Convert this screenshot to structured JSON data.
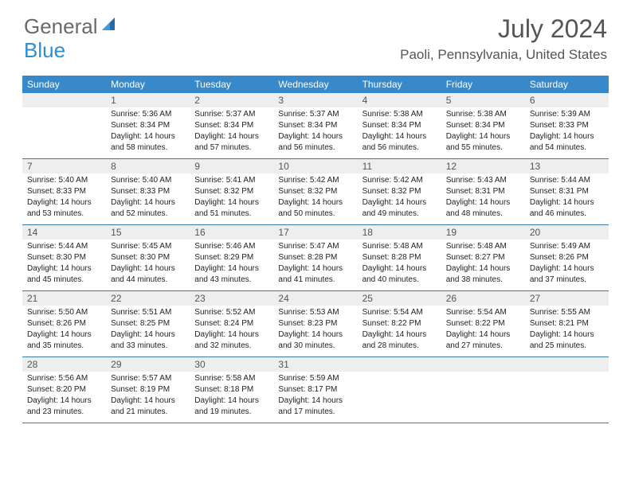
{
  "logo": {
    "text1": "General",
    "text2": "Blue"
  },
  "title": "July 2024",
  "location": "Paoli, Pennsylvania, United States",
  "colors": {
    "header_bg": "#3789c9",
    "header_text": "#ffffff",
    "daynum_bg": "#eeeeee",
    "daynum_text": "#555555",
    "body_text": "#222222",
    "row_border": "#3a78a8",
    "title_text": "#555555",
    "logo_gray": "#6a6a6a",
    "logo_blue": "#2f8dd0"
  },
  "day_names": [
    "Sunday",
    "Monday",
    "Tuesday",
    "Wednesday",
    "Thursday",
    "Friday",
    "Saturday"
  ],
  "weeks": [
    [
      {
        "day": "",
        "sunrise": "",
        "sunset": "",
        "daylight": ""
      },
      {
        "day": "1",
        "sunrise": "Sunrise: 5:36 AM",
        "sunset": "Sunset: 8:34 PM",
        "daylight": "Daylight: 14 hours and 58 minutes."
      },
      {
        "day": "2",
        "sunrise": "Sunrise: 5:37 AM",
        "sunset": "Sunset: 8:34 PM",
        "daylight": "Daylight: 14 hours and 57 minutes."
      },
      {
        "day": "3",
        "sunrise": "Sunrise: 5:37 AM",
        "sunset": "Sunset: 8:34 PM",
        "daylight": "Daylight: 14 hours and 56 minutes."
      },
      {
        "day": "4",
        "sunrise": "Sunrise: 5:38 AM",
        "sunset": "Sunset: 8:34 PM",
        "daylight": "Daylight: 14 hours and 56 minutes."
      },
      {
        "day": "5",
        "sunrise": "Sunrise: 5:38 AM",
        "sunset": "Sunset: 8:34 PM",
        "daylight": "Daylight: 14 hours and 55 minutes."
      },
      {
        "day": "6",
        "sunrise": "Sunrise: 5:39 AM",
        "sunset": "Sunset: 8:33 PM",
        "daylight": "Daylight: 14 hours and 54 minutes."
      }
    ],
    [
      {
        "day": "7",
        "sunrise": "Sunrise: 5:40 AM",
        "sunset": "Sunset: 8:33 PM",
        "daylight": "Daylight: 14 hours and 53 minutes."
      },
      {
        "day": "8",
        "sunrise": "Sunrise: 5:40 AM",
        "sunset": "Sunset: 8:33 PM",
        "daylight": "Daylight: 14 hours and 52 minutes."
      },
      {
        "day": "9",
        "sunrise": "Sunrise: 5:41 AM",
        "sunset": "Sunset: 8:32 PM",
        "daylight": "Daylight: 14 hours and 51 minutes."
      },
      {
        "day": "10",
        "sunrise": "Sunrise: 5:42 AM",
        "sunset": "Sunset: 8:32 PM",
        "daylight": "Daylight: 14 hours and 50 minutes."
      },
      {
        "day": "11",
        "sunrise": "Sunrise: 5:42 AM",
        "sunset": "Sunset: 8:32 PM",
        "daylight": "Daylight: 14 hours and 49 minutes."
      },
      {
        "day": "12",
        "sunrise": "Sunrise: 5:43 AM",
        "sunset": "Sunset: 8:31 PM",
        "daylight": "Daylight: 14 hours and 48 minutes."
      },
      {
        "day": "13",
        "sunrise": "Sunrise: 5:44 AM",
        "sunset": "Sunset: 8:31 PM",
        "daylight": "Daylight: 14 hours and 46 minutes."
      }
    ],
    [
      {
        "day": "14",
        "sunrise": "Sunrise: 5:44 AM",
        "sunset": "Sunset: 8:30 PM",
        "daylight": "Daylight: 14 hours and 45 minutes."
      },
      {
        "day": "15",
        "sunrise": "Sunrise: 5:45 AM",
        "sunset": "Sunset: 8:30 PM",
        "daylight": "Daylight: 14 hours and 44 minutes."
      },
      {
        "day": "16",
        "sunrise": "Sunrise: 5:46 AM",
        "sunset": "Sunset: 8:29 PM",
        "daylight": "Daylight: 14 hours and 43 minutes."
      },
      {
        "day": "17",
        "sunrise": "Sunrise: 5:47 AM",
        "sunset": "Sunset: 8:28 PM",
        "daylight": "Daylight: 14 hours and 41 minutes."
      },
      {
        "day": "18",
        "sunrise": "Sunrise: 5:48 AM",
        "sunset": "Sunset: 8:28 PM",
        "daylight": "Daylight: 14 hours and 40 minutes."
      },
      {
        "day": "19",
        "sunrise": "Sunrise: 5:48 AM",
        "sunset": "Sunset: 8:27 PM",
        "daylight": "Daylight: 14 hours and 38 minutes."
      },
      {
        "day": "20",
        "sunrise": "Sunrise: 5:49 AM",
        "sunset": "Sunset: 8:26 PM",
        "daylight": "Daylight: 14 hours and 37 minutes."
      }
    ],
    [
      {
        "day": "21",
        "sunrise": "Sunrise: 5:50 AM",
        "sunset": "Sunset: 8:26 PM",
        "daylight": "Daylight: 14 hours and 35 minutes."
      },
      {
        "day": "22",
        "sunrise": "Sunrise: 5:51 AM",
        "sunset": "Sunset: 8:25 PM",
        "daylight": "Daylight: 14 hours and 33 minutes."
      },
      {
        "day": "23",
        "sunrise": "Sunrise: 5:52 AM",
        "sunset": "Sunset: 8:24 PM",
        "daylight": "Daylight: 14 hours and 32 minutes."
      },
      {
        "day": "24",
        "sunrise": "Sunrise: 5:53 AM",
        "sunset": "Sunset: 8:23 PM",
        "daylight": "Daylight: 14 hours and 30 minutes."
      },
      {
        "day": "25",
        "sunrise": "Sunrise: 5:54 AM",
        "sunset": "Sunset: 8:22 PM",
        "daylight": "Daylight: 14 hours and 28 minutes."
      },
      {
        "day": "26",
        "sunrise": "Sunrise: 5:54 AM",
        "sunset": "Sunset: 8:22 PM",
        "daylight": "Daylight: 14 hours and 27 minutes."
      },
      {
        "day": "27",
        "sunrise": "Sunrise: 5:55 AM",
        "sunset": "Sunset: 8:21 PM",
        "daylight": "Daylight: 14 hours and 25 minutes."
      }
    ],
    [
      {
        "day": "28",
        "sunrise": "Sunrise: 5:56 AM",
        "sunset": "Sunset: 8:20 PM",
        "daylight": "Daylight: 14 hours and 23 minutes."
      },
      {
        "day": "29",
        "sunrise": "Sunrise: 5:57 AM",
        "sunset": "Sunset: 8:19 PM",
        "daylight": "Daylight: 14 hours and 21 minutes."
      },
      {
        "day": "30",
        "sunrise": "Sunrise: 5:58 AM",
        "sunset": "Sunset: 8:18 PM",
        "daylight": "Daylight: 14 hours and 19 minutes."
      },
      {
        "day": "31",
        "sunrise": "Sunrise: 5:59 AM",
        "sunset": "Sunset: 8:17 PM",
        "daylight": "Daylight: 14 hours and 17 minutes."
      },
      {
        "day": "",
        "sunrise": "",
        "sunset": "",
        "daylight": ""
      },
      {
        "day": "",
        "sunrise": "",
        "sunset": "",
        "daylight": ""
      },
      {
        "day": "",
        "sunrise": "",
        "sunset": "",
        "daylight": ""
      }
    ]
  ]
}
